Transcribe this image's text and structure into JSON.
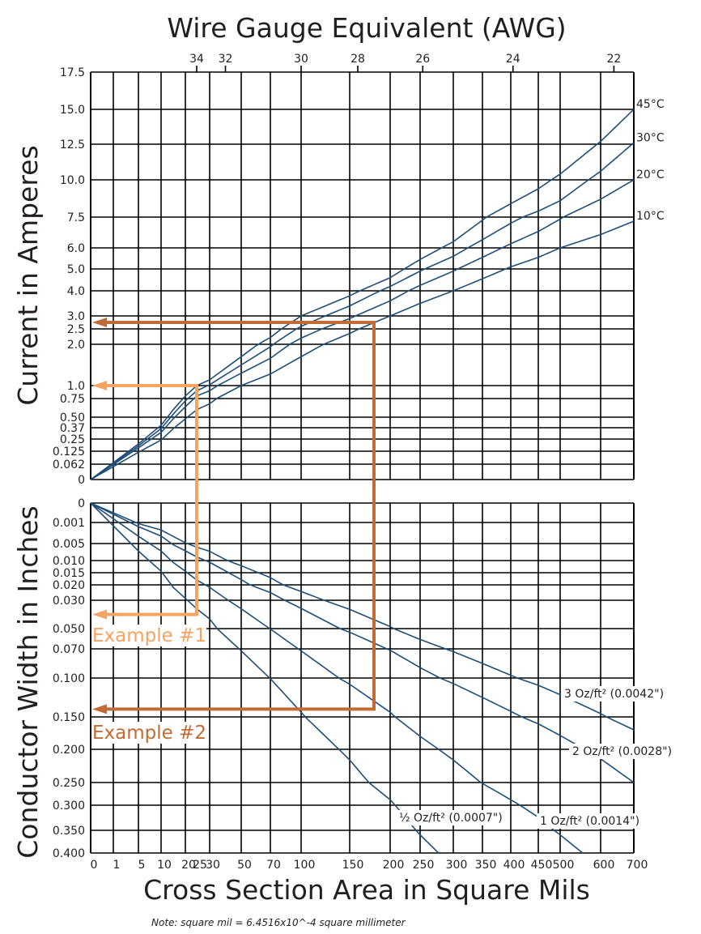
{
  "chart_data": {
    "type": "line",
    "title": "Wire Gauge Equivalent (AWG)",
    "xlabel": "Cross Section Area in Square Mils",
    "note": "Note: square mil = 6.4516x10^-4 square millimeter",
    "colors": {
      "grid": "#000000",
      "curve": "#1f4e79",
      "example1": "#f4a460",
      "example2": "#c26b34",
      "text": "#231f20"
    },
    "x_axis": {
      "ticks": [
        "0",
        "1",
        "5",
        "10",
        "20",
        "25",
        "30",
        "50",
        "70",
        "100",
        "150",
        "200",
        "250",
        "300",
        "350",
        "400",
        "450",
        "500",
        "600",
        "700"
      ],
      "xlim": [
        0,
        700
      ]
    },
    "awg_axis": {
      "ticks": [
        {
          "label": "34",
          "area": 25
        },
        {
          "label": "32",
          "area": 40
        },
        {
          "label": "30",
          "area": 100
        },
        {
          "label": "28",
          "area": 160
        },
        {
          "label": "26",
          "area": 254
        },
        {
          "label": "24",
          "area": 404
        },
        {
          "label": "22",
          "area": 640
        }
      ]
    },
    "upper_panel": {
      "ylabel": "Current in Amperes",
      "ticks": [
        "0",
        "0.062",
        "0.125",
        "0.25",
        "0.37",
        "0.50",
        "0.75",
        "1.0",
        "2.0",
        "2.5",
        "3.0",
        "4.0",
        "5.0",
        "6.0",
        "7.5",
        "10.0",
        "12.5",
        "15.0",
        "17.5"
      ],
      "ylim": [
        0,
        17.5
      ],
      "series": [
        {
          "name": "45°C",
          "points": [
            [
              0,
              0
            ],
            [
              25,
              1.0
            ],
            [
              50,
              1.7
            ],
            [
              100,
              3.0
            ],
            [
              200,
              4.6
            ],
            [
              300,
              6.3
            ],
            [
              400,
              8.4
            ],
            [
              500,
              10.4
            ],
            [
              700,
              15.0
            ]
          ]
        },
        {
          "name": "30°C",
          "points": [
            [
              0,
              0
            ],
            [
              25,
              0.9
            ],
            [
              50,
              1.5
            ],
            [
              100,
              2.6
            ],
            [
              200,
              4.2
            ],
            [
              300,
              5.6
            ],
            [
              400,
              7.2
            ],
            [
              500,
              8.6
            ],
            [
              700,
              12.6
            ]
          ]
        },
        {
          "name": "20°C",
          "points": [
            [
              0,
              0
            ],
            [
              25,
              0.8
            ],
            [
              50,
              1.3
            ],
            [
              100,
              2.2
            ],
            [
              200,
              3.6
            ],
            [
              300,
              4.9
            ],
            [
              400,
              6.2
            ],
            [
              500,
              7.4
            ],
            [
              700,
              10.0
            ]
          ]
        },
        {
          "name": "10°C",
          "points": [
            [
              0,
              0
            ],
            [
              25,
              0.6
            ],
            [
              50,
              1.0
            ],
            [
              100,
              1.7
            ],
            [
              200,
              3.0
            ],
            [
              300,
              4.0
            ],
            [
              400,
              5.1
            ],
            [
              500,
              6.0
            ],
            [
              700,
              7.3
            ]
          ]
        }
      ]
    },
    "lower_panel": {
      "ylabel": "Conductor Width in Inches",
      "ticks": [
        "0",
        "0.001",
        "0.005",
        "0.010",
        "0.015",
        "0.020",
        "0.030",
        "0.050",
        "0.070",
        "0.100",
        "0.150",
        "0.200",
        "0.250",
        "0.300",
        "0.350",
        "0.400"
      ],
      "ylim": [
        0,
        0.4
      ],
      "series": [
        {
          "name": "3 Oz/ft² (0.0042\")",
          "points": [
            [
              0,
              0
            ],
            [
              700,
              0.17
            ]
          ]
        },
        {
          "name": "2 Oz/ft² (0.0028\")",
          "points": [
            [
              0,
              0
            ],
            [
              700,
              0.25
            ]
          ]
        },
        {
          "name": "1 Oz/ft² (0.0014\")",
          "points": [
            [
              0,
              0
            ],
            [
              500,
              0.36
            ]
          ]
        },
        {
          "name": "½ Oz/ft² (0.0007\")",
          "points": [
            [
              0,
              0
            ],
            [
              250,
              0.36
            ]
          ]
        }
      ]
    },
    "examples": [
      {
        "name": "Example #1",
        "x": 25,
        "current": 1.0,
        "width": 0.04
      },
      {
        "name": "Example #2",
        "x": 180,
        "current": 2.75,
        "width": 0.14
      }
    ]
  }
}
